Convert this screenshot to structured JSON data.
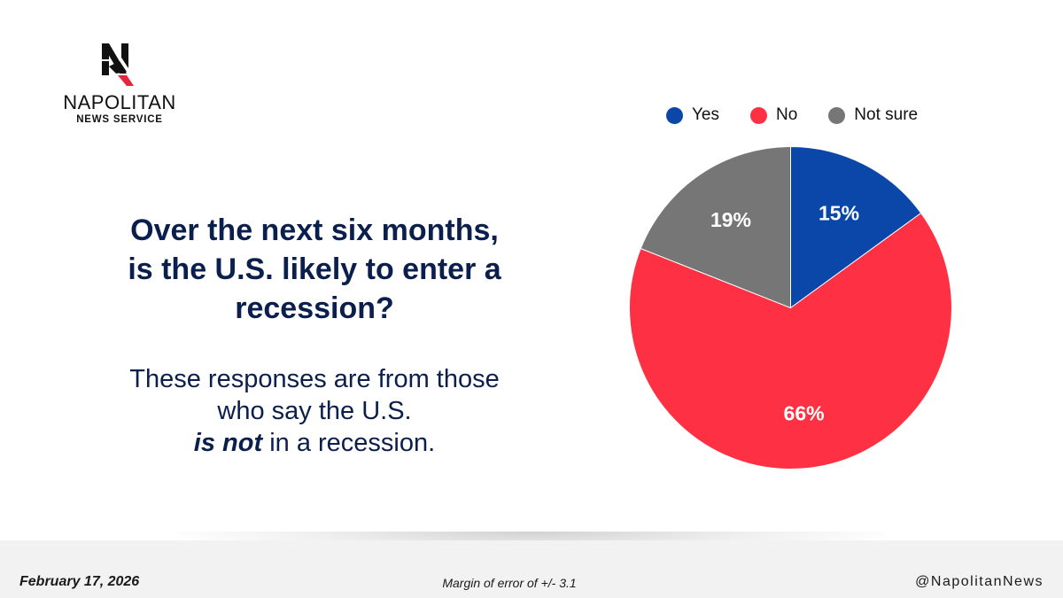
{
  "logo": {
    "name": "NAPOLITAN",
    "subtitle": "NEWS SERVICE",
    "icon": "napolitan-n-eagle-logo"
  },
  "question": {
    "line1": "Over the next six months,",
    "line2": "is the U.S. likely to enter a",
    "line3": "recession?"
  },
  "subtext": {
    "line1": "These responses are from those",
    "line2": "who say the U.S.",
    "emphasis": "is not",
    "line3_rest": " in a recession."
  },
  "colors": {
    "yes": "#0b47a8",
    "no": "#fe3044",
    "not_sure": "#767676",
    "text_dark": "#0b1f4d"
  },
  "chart_data": {
    "type": "pie",
    "title": "",
    "legend_position": "top",
    "slices": [
      {
        "label": "Yes",
        "value": 15,
        "display": "15%",
        "color": "#0b47a8"
      },
      {
        "label": "No",
        "value": 66,
        "display": "66%",
        "color": "#fe3044"
      },
      {
        "label": "Not sure",
        "value": 19,
        "display": "19%",
        "color": "#767676"
      }
    ]
  },
  "footer": {
    "date": "February 17, 2026",
    "margin_of_error": "Margin of error of +/- 3.1",
    "handle": "@NapolitanNews"
  }
}
